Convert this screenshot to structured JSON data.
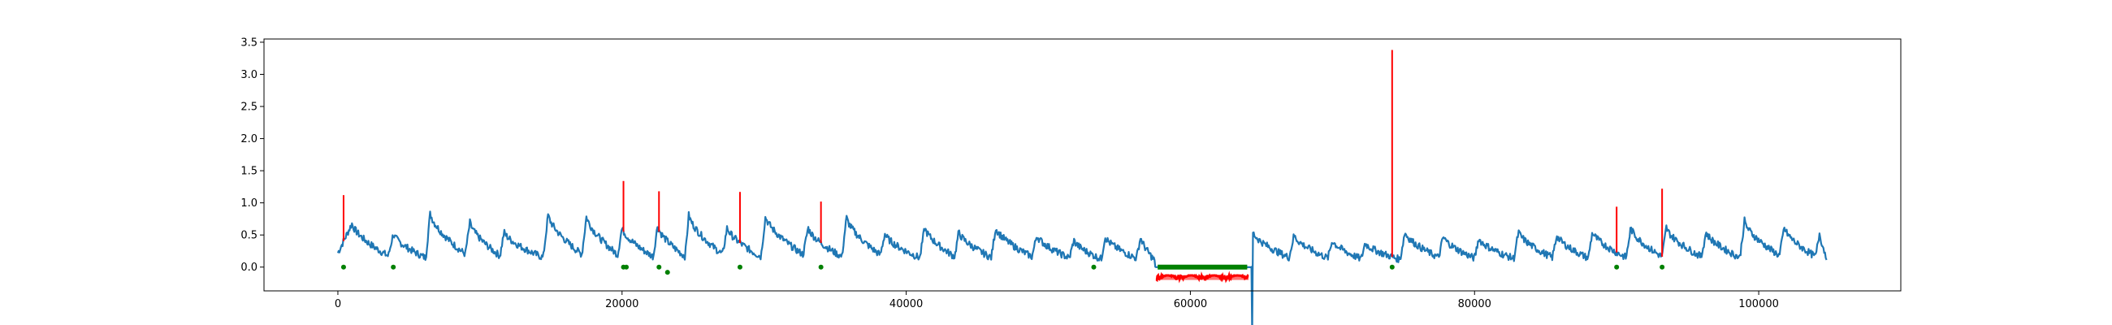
{
  "chart_data": {
    "type": "line",
    "title": "",
    "xlabel": "",
    "ylabel": "",
    "xlim": [
      -5200,
      110000
    ],
    "ylim": [
      -0.37,
      3.55
    ],
    "x_ticks": [
      0,
      20000,
      40000,
      60000,
      80000,
      100000
    ],
    "x_tick_labels": [
      "0",
      "20000",
      "40000",
      "60000",
      "80000",
      "100000"
    ],
    "y_ticks": [
      0.0,
      0.5,
      1.0,
      1.5,
      2.0,
      2.5,
      3.0,
      3.5
    ],
    "y_tick_labels": [
      "0.0",
      "0.5",
      "1.0",
      "1.5",
      "2.0",
      "2.5",
      "3.0",
      "3.5"
    ],
    "grid": false,
    "legend": "none",
    "series": [
      {
        "role": "signal",
        "color": "#1f77b4",
        "style": "line",
        "x_start": 0,
        "x_end": 104800,
        "cycle_peaks": [
          [
            1000,
            0.68
          ],
          [
            3900,
            0.52
          ],
          [
            6500,
            0.85
          ],
          [
            9300,
            0.7
          ],
          [
            11700,
            0.55
          ],
          [
            14800,
            0.82
          ],
          [
            17500,
            0.8
          ],
          [
            20000,
            0.62
          ],
          [
            22500,
            0.65
          ],
          [
            24700,
            0.82
          ],
          [
            27400,
            0.62
          ],
          [
            30100,
            0.8
          ],
          [
            33100,
            0.62
          ],
          [
            35800,
            0.78
          ],
          [
            38500,
            0.52
          ],
          [
            41300,
            0.62
          ],
          [
            43700,
            0.55
          ],
          [
            46300,
            0.62
          ],
          [
            49200,
            0.5
          ],
          [
            51800,
            0.42
          ],
          [
            54000,
            0.48
          ],
          [
            56500,
            0.47
          ],
          [
            64400,
            0.55
          ],
          [
            67300,
            0.5
          ],
          [
            70000,
            0.42
          ],
          [
            72300,
            0.38
          ],
          [
            75100,
            0.55
          ],
          [
            77800,
            0.48
          ],
          [
            80300,
            0.45
          ],
          [
            83100,
            0.55
          ],
          [
            85800,
            0.5
          ],
          [
            88300,
            0.55
          ],
          [
            91000,
            0.62
          ],
          [
            93500,
            0.62
          ],
          [
            96300,
            0.55
          ],
          [
            99000,
            0.72
          ],
          [
            101800,
            0.62
          ],
          [
            104300,
            0.55
          ]
        ],
        "flat_segment": [
          57500,
          64300,
          0.0
        ]
      },
      {
        "role": "anomaly",
        "color": "#ff0000",
        "style": "spikes",
        "spikes": [
          [
            400,
            1.12
          ],
          [
            20100,
            1.34
          ],
          [
            22600,
            1.18
          ],
          [
            28300,
            1.17
          ],
          [
            34000,
            1.02
          ],
          [
            74200,
            3.38
          ],
          [
            90000,
            0.94
          ],
          [
            93200,
            1.22
          ]
        ],
        "band": {
          "x": [
            57600,
            64100
          ],
          "y": [
            -0.13,
            -0.2
          ]
        }
      },
      {
        "role": "markers",
        "color": "#008000",
        "style": "points",
        "points": [
          [
            400,
            0.0
          ],
          [
            3900,
            0.0
          ],
          [
            20100,
            0.0
          ],
          [
            20300,
            0.0
          ],
          [
            22600,
            0.0
          ],
          [
            23200,
            -0.08
          ],
          [
            28300,
            0.0
          ],
          [
            34000,
            0.0
          ],
          [
            53200,
            0.0
          ],
          [
            74200,
            0.0
          ],
          [
            90000,
            0.0
          ],
          [
            93200,
            0.0
          ]
        ],
        "band": {
          "x": [
            57700,
            64000
          ],
          "y": 0.0
        }
      }
    ]
  }
}
